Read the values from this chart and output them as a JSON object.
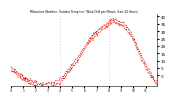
{
  "title": "Milwaukee Weather  Outdoor Temp (vs)  Wind Chill per Minute (Last 24 Hours)",
  "bg_color": "#ffffff",
  "line_color": "#dd0000",
  "vline_color": "#aaaaaa",
  "y_ticks": [
    0,
    5,
    10,
    15,
    20,
    25,
    30,
    35,
    40
  ],
  "ylim": [
    -7,
    42
  ],
  "xlim": [
    0,
    287
  ],
  "vlines": [
    96,
    192
  ],
  "num_points": 288,
  "temp_kp_x": [
    0,
    10,
    20,
    35,
    50,
    65,
    80,
    96,
    115,
    130,
    145,
    160,
    175,
    192,
    200,
    210,
    218,
    225,
    235,
    245,
    255,
    265,
    275,
    287
  ],
  "temp_kp_y": [
    5,
    3,
    0,
    -3,
    -5,
    -6,
    -5,
    -3,
    5,
    12,
    20,
    27,
    32,
    36,
    38,
    37,
    36,
    34,
    29,
    22,
    14,
    7,
    1,
    -5
  ],
  "chill_kp_x": [
    0,
    10,
    20,
    35,
    50,
    65,
    80,
    96,
    115,
    130,
    145,
    160,
    175,
    192,
    200,
    210,
    218,
    225,
    235,
    245,
    255,
    265,
    275,
    287
  ],
  "chill_kp_y": [
    3,
    1,
    -2,
    -5,
    -7,
    -8,
    -7,
    -5,
    3,
    10,
    18,
    25,
    30,
    34,
    36,
    35,
    34,
    32,
    27,
    20,
    12,
    5,
    -1,
    -7
  ]
}
